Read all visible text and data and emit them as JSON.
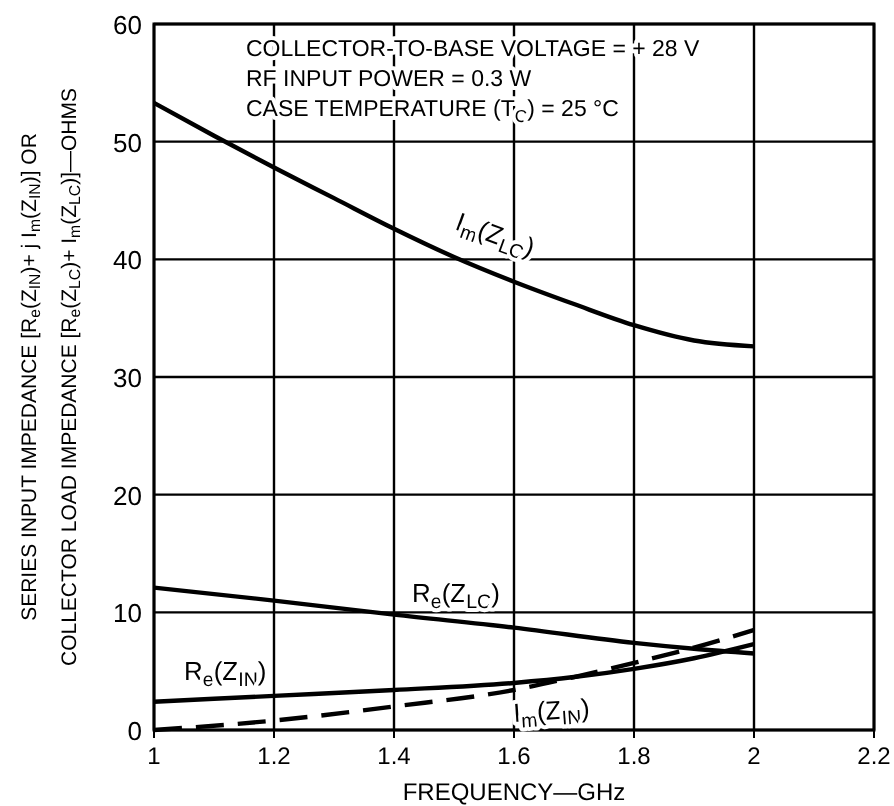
{
  "chart_data": {
    "type": "line",
    "xlabel": "FREQUENCY—GHz",
    "ylabel": "SERIES INPUT IMPEDANCE [R$_{e}$(Z$_{IN}$)+ j I$_{m}$(Z$_{IN}$)] OR\nCOLLECTOR LOAD IMPEDANCE [R$_{e}$(Z$_{LC}$)+ I$_{m}$(Z$_{LC}$)]—OHMS",
    "annotations": [
      "COLLECTOR-TO-BASE VOLTAGE = + 28 V",
      "RF INPUT POWER = 0.3 W",
      "CASE TEMPERATURE (T$_{C}$) = 25 °C"
    ],
    "xlim": [
      1,
      2.2
    ],
    "xticks": [
      1,
      1.2,
      1.4,
      1.6,
      1.8,
      2,
      2.2
    ],
    "ylim": [
      0,
      60
    ],
    "yticks": [
      0,
      10,
      20,
      30,
      40,
      50,
      60
    ],
    "grid": true,
    "marker": "none",
    "series": [
      {
        "name": "I$_{m}$(Z$_{LC}$)",
        "color": "#000000",
        "line_style": "solid",
        "x": [
          1,
          1.1,
          1.2,
          1.3,
          1.4,
          1.5,
          1.6,
          1.7,
          1.8,
          1.9,
          2
        ],
        "values": [
          53.3,
          50.5,
          47.8,
          45.2,
          42.6,
          40.2,
          38.1,
          36.2,
          34.4,
          33.1,
          32.6
        ]
      },
      {
        "name": "R$_{e}$(Z$_{LC}$)",
        "color": "#000000",
        "line_style": "solid",
        "x": [
          1,
          1.2,
          1.4,
          1.6,
          1.8,
          1.9,
          2
        ],
        "values": [
          12.1,
          11,
          9.8,
          8.7,
          7.4,
          6.9,
          6.5
        ]
      },
      {
        "name": "R$_{e}$(Z$_{IN}$)",
        "color": "#000000",
        "line_style": "solid",
        "x": [
          1,
          1.2,
          1.4,
          1.6,
          1.7,
          1.8,
          1.9,
          2
        ],
        "values": [
          2.4,
          2.9,
          3.4,
          4,
          4.5,
          5.2,
          6.1,
          7.3
        ]
      },
      {
        "name": "I$_{m}$(Z$_{IN}$)",
        "color": "#000000",
        "line_style": "dashed",
        "x": [
          1,
          1.2,
          1.4,
          1.6,
          1.7,
          1.8,
          1.9,
          2
        ],
        "values": [
          0,
          0.8,
          2,
          3.4,
          4.5,
          5.7,
          7,
          8.5
        ]
      }
    ]
  }
}
